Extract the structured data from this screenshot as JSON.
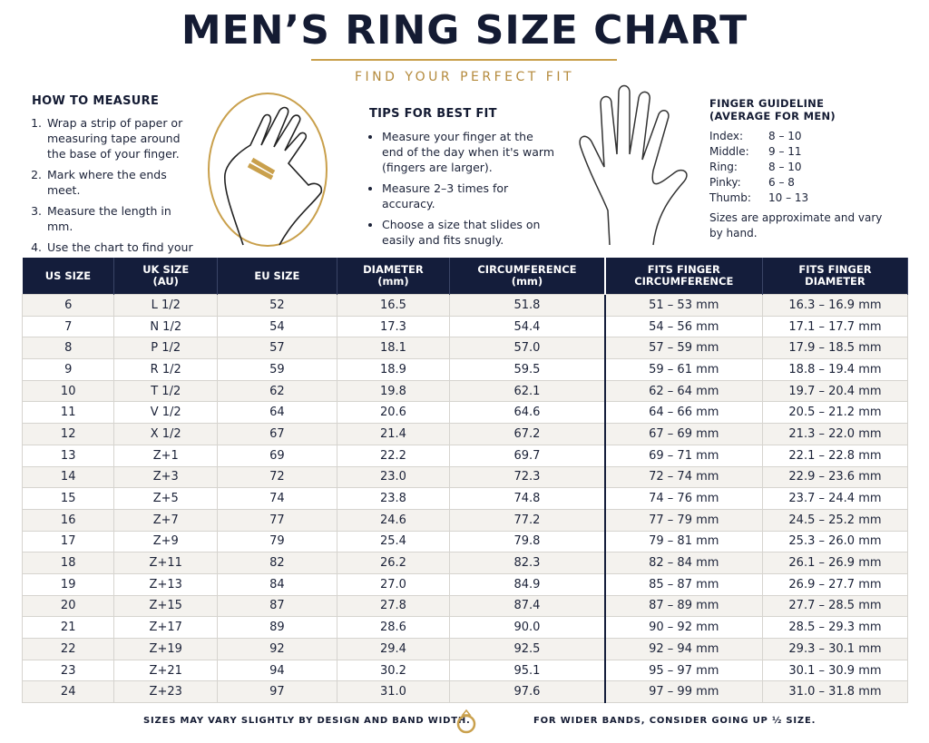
{
  "header": {
    "title": "MEN’S RING SIZE CHART",
    "subtitle": "FIND YOUR PERFECT FIT"
  },
  "how_to_measure": {
    "title": "HOW TO MEASURE",
    "steps": [
      "Wrap a strip of paper or measuring tape around the base of your finger.",
      "Mark where the ends meet.",
      "Measure the length in mm.",
      "Use the chart to find your ring size."
    ]
  },
  "tips": {
    "title": "TIPS FOR BEST FIT",
    "items": [
      "Measure your finger at the end of the day when it's warm (fingers are larger).",
      "Measure 2–3 times for accuracy.",
      "Choose a size that slides on easily and fits snugly."
    ]
  },
  "finger_guideline": {
    "title": [
      "FINGER GUIDELINE",
      "(AVERAGE FOR MEN)"
    ],
    "rows": [
      [
        "Index:",
        "8 – 10"
      ],
      [
        "Middle:",
        "9 – 11"
      ],
      [
        "Ring:",
        "8 – 10"
      ],
      [
        "Pinky:",
        "6 – 8"
      ],
      [
        "Thumb:",
        "10 – 13"
      ]
    ],
    "note": "Sizes are approximate and vary by hand."
  },
  "table": {
    "headers": [
      [
        "US SIZE"
      ],
      [
        "UK SIZE",
        "(AU)"
      ],
      [
        "EU SIZE"
      ],
      [
        "DIAMETER",
        "(mm)"
      ],
      [
        "CIRCUMFERENCE",
        "(mm)"
      ],
      [
        "FITS FINGER",
        "CIRCUMFERENCE"
      ],
      [
        "FITS FINGER",
        "DIAMETER"
      ]
    ],
    "rows": [
      [
        "6",
        "L 1/2",
        "52",
        "16.5",
        "51.8",
        "51 – 53 mm",
        "16.3 – 16.9 mm"
      ],
      [
        "7",
        "N 1/2",
        "54",
        "17.3",
        "54.4",
        "54 – 56 mm",
        "17.1 – 17.7 mm"
      ],
      [
        "8",
        "P 1/2",
        "57",
        "18.1",
        "57.0",
        "57 – 59 mm",
        "17.9 – 18.5 mm"
      ],
      [
        "9",
        "R 1/2",
        "59",
        "18.9",
        "59.5",
        "59 – 61 mm",
        "18.8 – 19.4 mm"
      ],
      [
        "10",
        "T 1/2",
        "62",
        "19.8",
        "62.1",
        "62 – 64 mm",
        "19.7 – 20.4 mm"
      ],
      [
        "11",
        "V 1/2",
        "64",
        "20.6",
        "64.6",
        "64 – 66 mm",
        "20.5 – 21.2 mm"
      ],
      [
        "12",
        "X 1/2",
        "67",
        "21.4",
        "67.2",
        "67 – 69 mm",
        "21.3 – 22.0 mm"
      ],
      [
        "13",
        "Z+1",
        "69",
        "22.2",
        "69.7",
        "69 – 71 mm",
        "22.1 – 22.8 mm"
      ],
      [
        "14",
        "Z+3",
        "72",
        "23.0",
        "72.3",
        "72 – 74 mm",
        "22.9 – 23.6 mm"
      ],
      [
        "15",
        "Z+5",
        "74",
        "23.8",
        "74.8",
        "74 – 76 mm",
        "23.7 – 24.4 mm"
      ],
      [
        "16",
        "Z+7",
        "77",
        "24.6",
        "77.2",
        "77 – 79 mm",
        "24.5 – 25.2 mm"
      ],
      [
        "17",
        "Z+9",
        "79",
        "25.4",
        "79.8",
        "79 – 81 mm",
        "25.3 – 26.0 mm"
      ],
      [
        "18",
        "Z+11",
        "82",
        "26.2",
        "82.3",
        "82 – 84 mm",
        "26.1 – 26.9 mm"
      ],
      [
        "19",
        "Z+13",
        "84",
        "27.0",
        "84.9",
        "85 – 87 mm",
        "26.9 – 27.7 mm"
      ],
      [
        "20",
        "Z+15",
        "87",
        "27.8",
        "87.4",
        "87 – 89 mm",
        "27.7 – 28.5 mm"
      ],
      [
        "21",
        "Z+17",
        "89",
        "28.6",
        "90.0",
        "90 – 92 mm",
        "28.5 – 29.3 mm"
      ],
      [
        "22",
        "Z+19",
        "92",
        "29.4",
        "92.5",
        "92 – 94 mm",
        "29.3 – 30.1 mm"
      ],
      [
        "23",
        "Z+21",
        "94",
        "30.2",
        "95.1",
        "95 – 97 mm",
        "30.1 – 30.9 mm"
      ],
      [
        "24",
        "Z+23",
        "97",
        "31.0",
        "97.6",
        "97 – 99 mm",
        "31.0 – 31.8 mm"
      ]
    ]
  },
  "footer": {
    "left": "SIZES MAY VARY SLIGHTLY BY DESIGN AND BAND WIDTH.",
    "right": "FOR WIDER BANDS, CONSIDER GOING UP ½ SIZE."
  }
}
